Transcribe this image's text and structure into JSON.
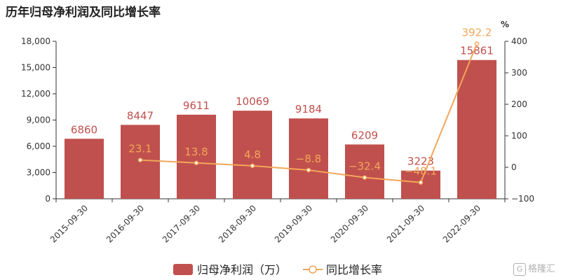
{
  "chart_data": {
    "type": "bar",
    "title": "历年归母净利润及同比增长率",
    "categories": [
      "2015-09-30",
      "2016-09-30",
      "2017-09-30",
      "2018-09-30",
      "2019-09-30",
      "2020-09-30",
      "2021-09-30",
      "2022-09-30"
    ],
    "series": [
      {
        "name": "归母净利润（万）",
        "type": "bar",
        "axis": "left",
        "color": "#c0504d",
        "values": [
          6860,
          8447,
          9611,
          10069,
          9184,
          6209,
          3223,
          15861
        ],
        "labels": [
          "6860",
          "8447",
          "9611",
          "10069",
          "9184",
          "6209",
          "3223",
          "15861"
        ]
      },
      {
        "name": "同比增长率",
        "type": "line",
        "axis": "right",
        "color": "#f2a65a",
        "values": [
          null,
          23.1,
          13.8,
          4.8,
          -8.8,
          -32.4,
          -48.1,
          392.2
        ],
        "labels": [
          "",
          "23.1",
          "13.8",
          "4.8",
          "−8.8",
          "−32.4",
          "−48.1",
          "392.2"
        ]
      }
    ],
    "y_left": {
      "ylim": [
        0,
        18000
      ],
      "ticks": [
        "0",
        "3,000",
        "6,000",
        "9,000",
        "12,000",
        "15,000",
        "18,000"
      ]
    },
    "y_right": {
      "label": "%",
      "ylim": [
        -100,
        400
      ],
      "ticks": [
        "−100",
        "0",
        "100",
        "200",
        "300",
        "400"
      ]
    },
    "legend": {
      "position": "bottom",
      "items": [
        {
          "label": "归母净利润（万）",
          "marker": "bar",
          "color": "#c0504d"
        },
        {
          "label": "同比增长率",
          "marker": "line",
          "color": "#f2a65a"
        }
      ]
    },
    "grid": false
  },
  "watermark": {
    "text": "格隆汇"
  }
}
